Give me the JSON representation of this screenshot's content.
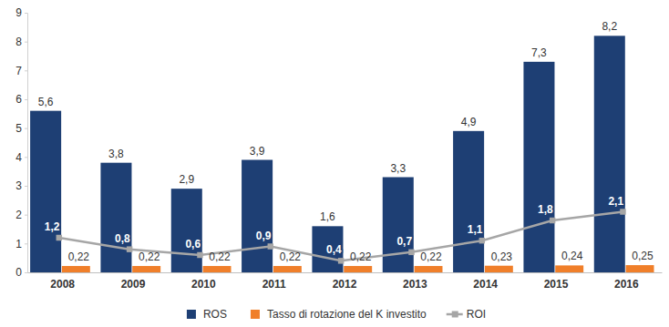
{
  "chart_data": {
    "type": "bar",
    "categories": [
      "2008",
      "2009",
      "2010",
      "2011",
      "2012",
      "2013",
      "2014",
      "2015",
      "2016"
    ],
    "series": [
      {
        "name": "ROS",
        "type": "bar",
        "color": "#1e3f74",
        "values": [
          5.6,
          3.8,
          2.9,
          3.9,
          1.6,
          3.3,
          4.9,
          7.3,
          8.2
        ],
        "value_labels": [
          "5,6",
          "3,8",
          "2,9",
          "3,9",
          "1,6",
          "3,3",
          "4,9",
          "7,3",
          "8,2"
        ]
      },
      {
        "name": "Tasso di rotazione del K investito",
        "type": "bar",
        "color": "#f07f2a",
        "values": [
          0.22,
          0.22,
          0.22,
          0.22,
          0.22,
          0.22,
          0.23,
          0.24,
          0.25
        ],
        "value_labels": [
          "0,22",
          "0,22",
          "0,22",
          "0,22",
          "0,22",
          "0,22",
          "0,23",
          "0,24",
          "0,25"
        ]
      },
      {
        "name": "ROI",
        "type": "line",
        "color": "#a6a6a6",
        "marker": "square",
        "line_style": "solid",
        "values": [
          1.2,
          0.8,
          0.6,
          0.9,
          0.4,
          0.7,
          1.1,
          1.8,
          2.1
        ],
        "value_labels": [
          "1,2",
          "0,8",
          "0,6",
          "0,9",
          "0,4",
          "0,7",
          "1,1",
          "1,8",
          "2,1"
        ]
      }
    ],
    "ylim": [
      0,
      9
    ],
    "yticks": [
      0,
      1,
      2,
      3,
      4,
      5,
      6,
      7,
      8,
      9
    ],
    "grid": false,
    "data_labels": true,
    "legend": "bottom"
  }
}
